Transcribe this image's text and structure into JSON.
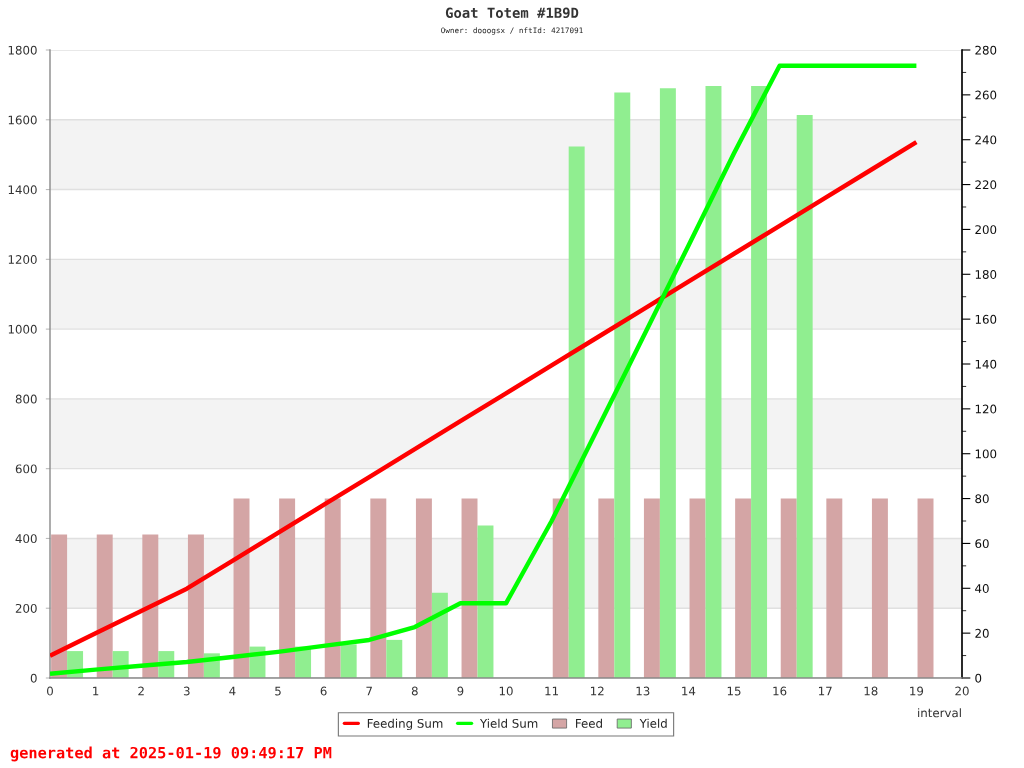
{
  "chart_data": {
    "type": "bar",
    "title": "Goat Totem #1B9D",
    "subtitle": "Owner: dooogsx / nftId: 4217091",
    "xlabel": "interval",
    "annotations": [
      "generated at 2025-01-19 09:49:17 PM"
    ],
    "x": [
      0,
      1,
      2,
      3,
      4,
      5,
      6,
      7,
      8,
      9,
      10,
      11,
      12,
      13,
      14,
      15,
      16,
      17,
      18,
      19
    ],
    "xlim": [
      0,
      20
    ],
    "xticks": [
      0,
      1,
      2,
      3,
      4,
      5,
      6,
      7,
      8,
      9,
      10,
      11,
      12,
      13,
      14,
      15,
      16,
      17,
      18,
      19,
      20
    ],
    "ylim": [
      0,
      1800
    ],
    "yticks": [
      0,
      200,
      400,
      600,
      800,
      1000,
      1200,
      1400,
      1600,
      1800
    ],
    "y2lim": [
      0,
      280
    ],
    "y2ticks": [
      0,
      {
        "value": 10,
        "label": null
      },
      20,
      {
        "value": 30,
        "label": null
      },
      40,
      {
        "value": 50,
        "label": null
      },
      60,
      {
        "value": 70,
        "label": null
      },
      80,
      {
        "value": 90,
        "label": null
      },
      100,
      {
        "value": 110,
        "label": null
      },
      120,
      {
        "value": 130,
        "label": null
      },
      140,
      {
        "value": 150,
        "label": null
      },
      160,
      {
        "value": 170,
        "label": null
      },
      180,
      {
        "value": 190,
        "label": null
      },
      200,
      {
        "value": 210,
        "label": null
      },
      220,
      {
        "value": 230,
        "label": null
      },
      240,
      {
        "value": 250,
        "label": null
      },
      260,
      {
        "value": 270,
        "label": null
      },
      280
    ],
    "series": [
      {
        "name": "Feeding Sum",
        "type": "line",
        "color": "#ff0000",
        "values": [
          64,
          128,
          192,
          256,
          336,
          416,
          496,
          576,
          656,
          736,
          816,
          896,
          976,
          1056,
          1136,
          1216,
          1296,
          1376,
          1456,
          1536
        ]
      },
      {
        "name": "Yield Sum",
        "type": "line",
        "color": "#00ff00",
        "values": [
          12,
          24,
          35,
          46,
          60,
          75,
          92,
          109,
          146,
          214,
          214,
          450,
          712,
          975,
          1239,
          1504,
          1755,
          1755,
          1755,
          1755
        ]
      },
      {
        "name": "Feed",
        "axis": "y2",
        "color": "#d4a5a5",
        "x": [
          0.2,
          1.2,
          2.2,
          3.2,
          4.2,
          5.2,
          6.2,
          7.2,
          8.2,
          9.2,
          11.2,
          12.2,
          13.2,
          14.2,
          15.2,
          16.2,
          17.2,
          18.2,
          19.2
        ],
        "values": [
          64,
          64,
          64,
          64,
          80,
          80,
          80,
          80,
          80,
          80,
          80,
          80,
          80,
          80,
          80,
          80,
          80,
          80,
          80
        ]
      },
      {
        "name": "Yield",
        "axis": "y2",
        "color": "#90ee90",
        "x": [
          0.55,
          1.55,
          2.55,
          3.55,
          4.55,
          5.55,
          6.55,
          7.55,
          8.55,
          9.55,
          11.55,
          12.55,
          13.55,
          14.55,
          15.55,
          16.55
        ],
        "values": [
          12,
          12,
          12,
          11,
          14,
          14,
          15,
          17,
          38,
          68,
          237,
          261,
          263,
          264,
          264,
          251
        ]
      }
    ],
    "grid": "y",
    "legend": "bottom"
  }
}
